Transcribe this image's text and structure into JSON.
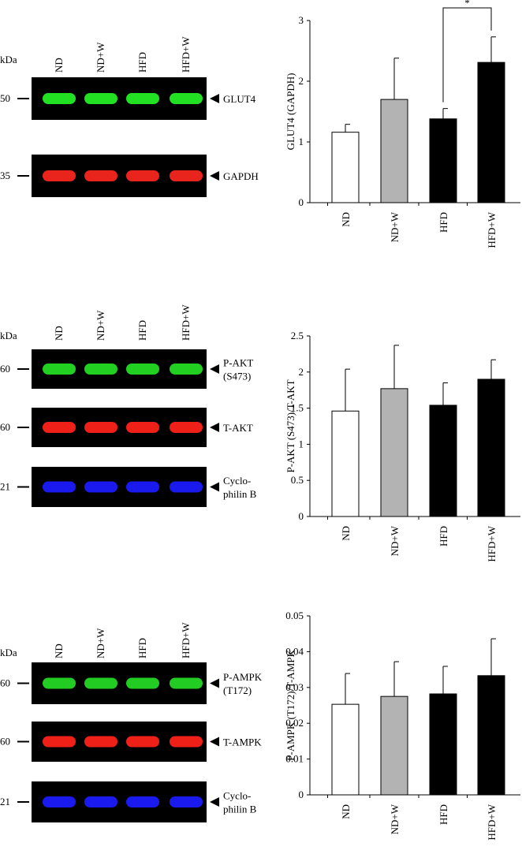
{
  "chart_data": [
    {
      "type": "bar",
      "y_label": "GLUT4 (GAPDH)",
      "categories": [
        "ND",
        "ND+W",
        "HFD",
        "HFD+W"
      ],
      "values": [
        1.16,
        1.7,
        1.38,
        2.31
      ],
      "errors": [
        0.13,
        0.68,
        0.17,
        0.42
      ],
      "colors": [
        "#ffffff",
        "#b3b3b3",
        "#000000",
        "#000000"
      ],
      "ylim": [
        0,
        3
      ],
      "yticks": [
        0,
        1,
        2,
        3
      ],
      "significance": [
        {
          "label": "*",
          "categories": [
            "HFD",
            "HFD+W"
          ]
        }
      ]
    },
    {
      "type": "bar",
      "y_label": "P-AKT (S473)/T-AKT",
      "categories": [
        "ND",
        "ND+W",
        "HFD",
        "HFD+W"
      ],
      "values": [
        1.46,
        1.77,
        1.54,
        1.9
      ],
      "errors": [
        0.58,
        0.6,
        0.31,
        0.27
      ],
      "colors": [
        "#ffffff",
        "#b3b3b3",
        "#000000",
        "#000000"
      ],
      "ylim": [
        0,
        2.5
      ],
      "yticks": [
        0,
        0.5,
        1,
        1.5,
        2,
        2.5
      ]
    },
    {
      "type": "bar",
      "y_label": "P-AMPK (T172)/T-AMPK",
      "categories": [
        "ND",
        "ND+W",
        "HFD",
        "HFD+W"
      ],
      "values": [
        0.0253,
        0.0275,
        0.0282,
        0.0333
      ],
      "errors": [
        0.0086,
        0.0097,
        0.0077,
        0.0103
      ],
      "colors": [
        "#ffffff",
        "#b3b3b3",
        "#000000",
        "#000000"
      ],
      "ylim": [
        0,
        0.05
      ],
      "yticks": [
        0,
        0.01,
        0.02,
        0.03,
        0.04,
        0.05
      ]
    }
  ],
  "blots": [
    {
      "unit": "kDa",
      "lanes": [
        "ND",
        "ND+W",
        "HFD",
        "HFD+W"
      ],
      "rows": [
        {
          "marker": "50",
          "label": [
            "GLUT4"
          ],
          "color": "#22e022"
        },
        {
          "marker": "35",
          "label": [
            "GAPDH"
          ],
          "color": "#e8241c"
        }
      ]
    },
    {
      "unit": "kDa",
      "lanes": [
        "ND",
        "ND+W",
        "HFD",
        "HFD+W"
      ],
      "rows": [
        {
          "marker": "60",
          "label": [
            "P-AKT",
            "(S473)"
          ],
          "color": "#22d022"
        },
        {
          "marker": "60",
          "label": [
            "T-AKT"
          ],
          "color": "#ee2018"
        },
        {
          "marker": "21",
          "label": [
            "Cyclo-",
            "philin B"
          ],
          "color": "#1a1aee"
        }
      ]
    },
    {
      "unit": "kDa",
      "lanes": [
        "ND",
        "ND+W",
        "HFD",
        "HFD+W"
      ],
      "rows": [
        {
          "marker": "60",
          "label": [
            "P-AMPK",
            "(T172)"
          ],
          "color": "#22cc22"
        },
        {
          "marker": "60",
          "label": [
            "T-AMPK"
          ],
          "color": "#ee2018"
        },
        {
          "marker": "21",
          "label": [
            "Cyclo-",
            "philin B"
          ],
          "color": "#1a1aee"
        }
      ]
    }
  ]
}
